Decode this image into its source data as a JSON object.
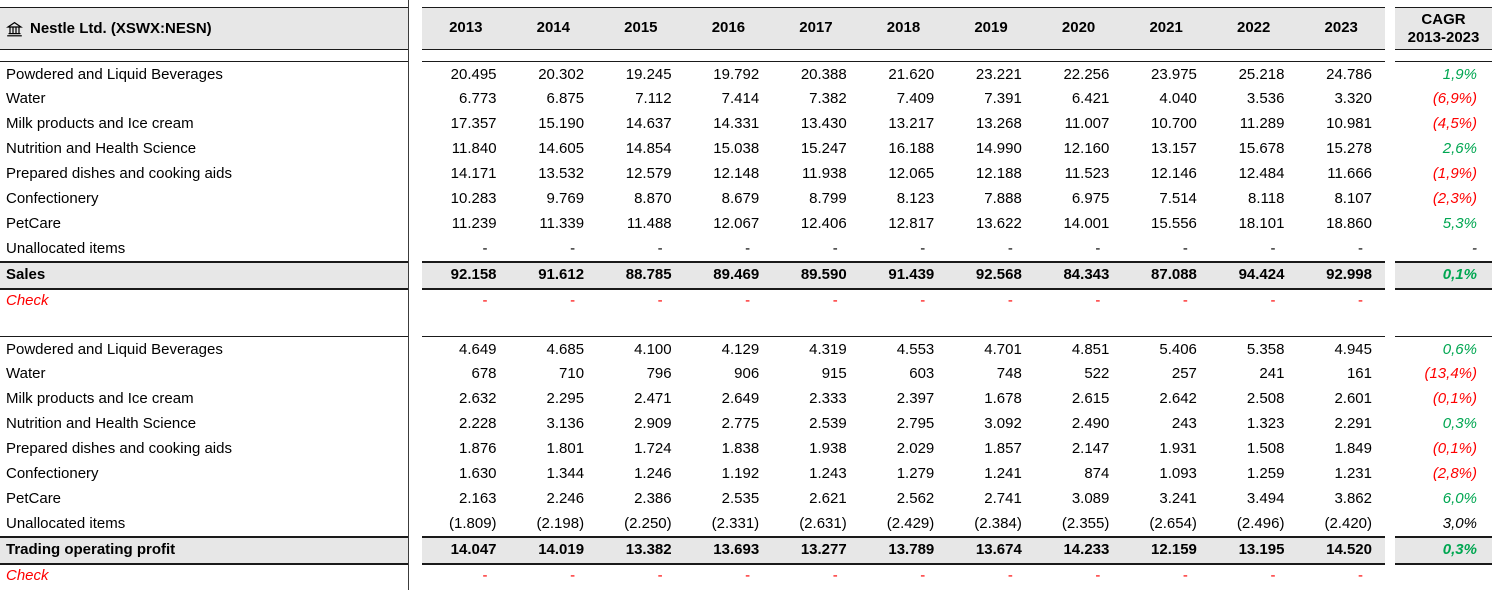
{
  "header": {
    "company": "Nestle Ltd. (XSWX:NESN)",
    "company_icon": "bank-icon",
    "years": [
      "2013",
      "2014",
      "2015",
      "2016",
      "2017",
      "2018",
      "2019",
      "2020",
      "2021",
      "2022",
      "2023"
    ],
    "cagr_line1": "CAGR",
    "cagr_line2": "2013-2023"
  },
  "colors": {
    "positive": "#00a651",
    "negative": "#fe0000",
    "check": "#fe0000",
    "header_bg": "#e7e7e7"
  },
  "sections": [
    {
      "rows": [
        {
          "label": "Powdered and Liquid Beverages",
          "values": [
            "20.495",
            "20.302",
            "19.245",
            "19.792",
            "20.388",
            "21.620",
            "23.221",
            "22.256",
            "23.975",
            "25.218",
            "24.786"
          ],
          "cagr": "1,9%",
          "cagr_sign": "positive"
        },
        {
          "label": "Water",
          "values": [
            "6.773",
            "6.875",
            "7.112",
            "7.414",
            "7.382",
            "7.409",
            "7.391",
            "6.421",
            "4.040",
            "3.536",
            "3.320"
          ],
          "cagr": "(6,9%)",
          "cagr_sign": "negative"
        },
        {
          "label": "Milk products and Ice cream",
          "values": [
            "17.357",
            "15.190",
            "14.637",
            "14.331",
            "13.430",
            "13.217",
            "13.268",
            "11.007",
            "10.700",
            "11.289",
            "10.981"
          ],
          "cagr": "(4,5%)",
          "cagr_sign": "negative"
        },
        {
          "label": "Nutrition and Health Science",
          "values": [
            "11.840",
            "14.605",
            "14.854",
            "15.038",
            "15.247",
            "16.188",
            "14.990",
            "12.160",
            "13.157",
            "15.678",
            "15.278"
          ],
          "cagr": "2,6%",
          "cagr_sign": "positive"
        },
        {
          "label": "Prepared dishes and cooking aids",
          "values": [
            "14.171",
            "13.532",
            "12.579",
            "12.148",
            "11.938",
            "12.065",
            "12.188",
            "11.523",
            "12.146",
            "12.484",
            "11.666"
          ],
          "cagr": "(1,9%)",
          "cagr_sign": "negative"
        },
        {
          "label": "Confectionery",
          "values": [
            "10.283",
            "9.769",
            "8.870",
            "8.679",
            "8.799",
            "8.123",
            "7.888",
            "6.975",
            "7.514",
            "8.118",
            "8.107"
          ],
          "cagr": "(2,3%)",
          "cagr_sign": "negative"
        },
        {
          "label": "PetCare",
          "values": [
            "11.239",
            "11.339",
            "11.488",
            "12.067",
            "12.406",
            "12.817",
            "13.622",
            "14.001",
            "15.556",
            "18.101",
            "18.860"
          ],
          "cagr": "5,3%",
          "cagr_sign": "positive"
        },
        {
          "label": "Unallocated items",
          "values": [
            "-",
            "-",
            "-",
            "-",
            "-",
            "-",
            "-",
            "-",
            "-",
            "-",
            "-"
          ],
          "cagr": "-",
          "cagr_sign": "neutral"
        }
      ],
      "total": {
        "label": "Sales",
        "values": [
          "92.158",
          "91.612",
          "88.785",
          "89.469",
          "89.590",
          "91.439",
          "92.568",
          "84.343",
          "87.088",
          "94.424",
          "92.998"
        ],
        "cagr": "0,1%",
        "cagr_sign": "positive"
      },
      "check": {
        "label": "Check",
        "values": [
          "-",
          "-",
          "-",
          "-",
          "-",
          "-",
          "-",
          "-",
          "-",
          "-",
          "-"
        ],
        "cagr": null,
        "cagr_sign": "neutral"
      }
    },
    {
      "rows": [
        {
          "label": "Powdered and Liquid Beverages",
          "values": [
            "4.649",
            "4.685",
            "4.100",
            "4.129",
            "4.319",
            "4.553",
            "4.701",
            "4.851",
            "5.406",
            "5.358",
            "4.945"
          ],
          "cagr": "0,6%",
          "cagr_sign": "positive"
        },
        {
          "label": "Water",
          "values": [
            "678",
            "710",
            "796",
            "906",
            "915",
            "603",
            "748",
            "522",
            "257",
            "241",
            "161"
          ],
          "cagr": "(13,4%)",
          "cagr_sign": "negative"
        },
        {
          "label": "Milk products and Ice cream",
          "values": [
            "2.632",
            "2.295",
            "2.471",
            "2.649",
            "2.333",
            "2.397",
            "1.678",
            "2.615",
            "2.642",
            "2.508",
            "2.601"
          ],
          "cagr": "(0,1%)",
          "cagr_sign": "negative"
        },
        {
          "label": "Nutrition and Health Science",
          "values": [
            "2.228",
            "3.136",
            "2.909",
            "2.775",
            "2.539",
            "2.795",
            "3.092",
            "2.490",
            "243",
            "1.323",
            "2.291"
          ],
          "cagr": "0,3%",
          "cagr_sign": "positive"
        },
        {
          "label": "Prepared dishes and cooking aids",
          "values": [
            "1.876",
            "1.801",
            "1.724",
            "1.838",
            "1.938",
            "2.029",
            "1.857",
            "2.147",
            "1.931",
            "1.508",
            "1.849"
          ],
          "cagr": "(0,1%)",
          "cagr_sign": "negative"
        },
        {
          "label": "Confectionery",
          "values": [
            "1.630",
            "1.344",
            "1.246",
            "1.192",
            "1.243",
            "1.279",
            "1.241",
            "874",
            "1.093",
            "1.259",
            "1.231"
          ],
          "cagr": "(2,8%)",
          "cagr_sign": "negative"
        },
        {
          "label": "PetCare",
          "values": [
            "2.163",
            "2.246",
            "2.386",
            "2.535",
            "2.621",
            "2.562",
            "2.741",
            "3.089",
            "3.241",
            "3.494",
            "3.862"
          ],
          "cagr": "6,0%",
          "cagr_sign": "positive"
        },
        {
          "label": "Unallocated items",
          "values": [
            "(1.809)",
            "(2.198)",
            "(2.250)",
            "(2.331)",
            "(2.631)",
            "(2.429)",
            "(2.384)",
            "(2.355)",
            "(2.654)",
            "(2.496)",
            "(2.420)"
          ],
          "cagr": "3,0%",
          "cagr_sign": "neutral"
        }
      ],
      "total": {
        "label": "Trading operating profit",
        "values": [
          "14.047",
          "14.019",
          "13.382",
          "13.693",
          "13.277",
          "13.789",
          "13.674",
          "14.233",
          "12.159",
          "13.195",
          "14.520"
        ],
        "cagr": "0,3%",
        "cagr_sign": "positive"
      },
      "check": {
        "label": "Check",
        "values": [
          "-",
          "-",
          "-",
          "-",
          "-",
          "-",
          "-",
          "-",
          "-",
          "-",
          "-"
        ],
        "cagr": null,
        "cagr_sign": "neutral"
      }
    }
  ]
}
